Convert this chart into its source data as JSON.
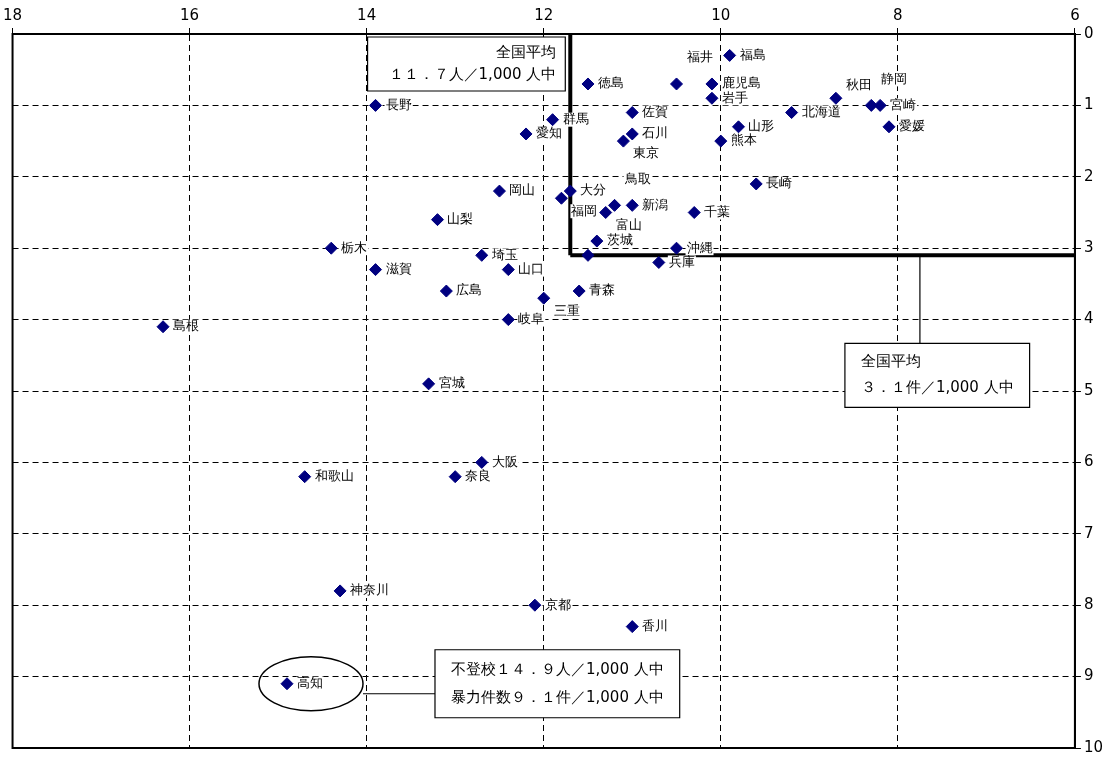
{
  "chart_data": {
    "type": "scatter",
    "marker": "diamond",
    "legend": false,
    "grid": true,
    "line_style": "dashed",
    "xlim": [
      18,
      6
    ],
    "xticks": [
      18,
      16,
      14,
      12,
      10,
      8,
      6
    ],
    "ylim": [
      10,
      0
    ],
    "yticks": [
      0,
      1,
      2,
      3,
      4,
      5,
      6,
      7,
      8,
      9,
      10
    ],
    "series": [
      {
        "color": "#000080",
        "x": [
          9.9,
          11.5,
          10.5,
          10.1,
          10.1,
          13.9,
          11.9,
          11.0,
          12.2,
          11.0,
          11.1,
          9.8,
          10.0,
          9.2,
          8.7,
          8.3,
          8.2,
          8.1,
          9.6,
          12.5,
          11.8,
          11.7,
          11.3,
          11.2,
          11.0,
          10.3,
          11.4,
          10.5,
          10.7,
          11.5,
          13.2,
          14.4,
          12.7,
          12.4,
          13.9,
          13.1,
          12.0,
          11.6,
          12.4,
          16.3,
          13.3,
          12.7,
          13.0,
          14.7,
          14.3,
          12.1,
          11.0,
          14.9
        ],
        "values": [
          0.3,
          0.7,
          0.7,
          0.7,
          0.9,
          1.0,
          1.2,
          1.1,
          1.4,
          1.4,
          1.5,
          1.3,
          1.5,
          1.1,
          0.9,
          1.0,
          1.0,
          1.3,
          2.1,
          2.2,
          2.3,
          2.2,
          2.5,
          2.4,
          2.4,
          2.5,
          2.9,
          3.0,
          3.2,
          3.1,
          2.6,
          3.0,
          3.1,
          3.3,
          3.3,
          3.6,
          3.7,
          3.6,
          4.0,
          4.1,
          4.9,
          6.0,
          6.2,
          6.2,
          7.8,
          8.0,
          8.3,
          9.1
        ]
      }
    ],
    "ref_lines": [
      {
        "axis": "x",
        "value": 11.7,
        "label": "全国平均"
      },
      {
        "axis": "y",
        "value": 3.1,
        "label": "全国平均"
      }
    ],
    "annotations": [
      {
        "text": "福島",
        "x": 9.9,
        "y": 0.3
      },
      {
        "text": "徳島",
        "x": 11.5,
        "y": 0.7
      },
      {
        "text": "福井",
        "x": 10.5,
        "y": 0.7
      },
      {
        "text": "鹿児島",
        "x": 10.1,
        "y": 0.7
      },
      {
        "text": "岩手",
        "x": 10.1,
        "y": 0.9
      },
      {
        "text": "長野",
        "x": 13.9,
        "y": 1.0
      },
      {
        "text": "群馬",
        "x": 11.9,
        "y": 1.2
      },
      {
        "text": "佐賀",
        "x": 11.0,
        "y": 1.1
      },
      {
        "text": "愛知",
        "x": 12.2,
        "y": 1.4
      },
      {
        "text": "石川",
        "x": 11.0,
        "y": 1.4
      },
      {
        "text": "東京",
        "x": 11.1,
        "y": 1.5
      },
      {
        "text": "山形",
        "x": 9.8,
        "y": 1.3
      },
      {
        "text": "熊本",
        "x": 10.0,
        "y": 1.5
      },
      {
        "text": "北海道",
        "x": 9.2,
        "y": 1.1
      },
      {
        "text": "秋田",
        "x": 8.7,
        "y": 0.9
      },
      {
        "text": "静岡",
        "x": 8.3,
        "y": 1.0
      },
      {
        "text": "宮崎",
        "x": 8.2,
        "y": 1.0
      },
      {
        "text": "愛媛",
        "x": 8.1,
        "y": 1.3
      },
      {
        "text": "長崎",
        "x": 9.6,
        "y": 2.1
      },
      {
        "text": "岡山",
        "x": 12.5,
        "y": 2.2
      },
      {
        "text": "福岡",
        "x": 11.8,
        "y": 2.3
      },
      {
        "text": "大分",
        "x": 11.7,
        "y": 2.2
      },
      {
        "text": "富山",
        "x": 11.3,
        "y": 2.5
      },
      {
        "text": "鳥取",
        "x": 11.2,
        "y": 2.4
      },
      {
        "text": "新潟",
        "x": 11.0,
        "y": 2.4
      },
      {
        "text": "千葉",
        "x": 10.3,
        "y": 2.5
      },
      {
        "text": "茨城",
        "x": 11.4,
        "y": 2.9
      },
      {
        "text": "沖縄",
        "x": 10.5,
        "y": 3.0
      },
      {
        "text": "兵庫",
        "x": 10.7,
        "y": 3.2
      },
      {
        "text": "山梨",
        "x": 13.2,
        "y": 2.6
      },
      {
        "text": "栃木",
        "x": 14.4,
        "y": 3.0
      },
      {
        "text": "埼玉",
        "x": 12.7,
        "y": 3.1
      },
      {
        "text": "山口",
        "x": 12.4,
        "y": 3.3
      },
      {
        "text": "滋賀",
        "x": 13.9,
        "y": 3.3
      },
      {
        "text": "広島",
        "x": 13.1,
        "y": 3.6
      },
      {
        "text": "三重",
        "x": 12.0,
        "y": 3.7
      },
      {
        "text": "青森",
        "x": 11.6,
        "y": 3.6
      },
      {
        "text": "岐阜",
        "x": 12.4,
        "y": 4.0
      },
      {
        "text": "島根",
        "x": 16.3,
        "y": 4.1
      },
      {
        "text": "宮城",
        "x": 13.3,
        "y": 4.9
      },
      {
        "text": "大阪",
        "x": 12.7,
        "y": 6.0
      },
      {
        "text": "奈良",
        "x": 13.0,
        "y": 6.2
      },
      {
        "text": "和歌山",
        "x": 14.7,
        "y": 6.2
      },
      {
        "text": "神奈川",
        "x": 14.3,
        "y": 7.8
      },
      {
        "text": "京都",
        "x": 12.1,
        "y": 8.0
      },
      {
        "text": "香川",
        "x": 11.0,
        "y": 8.3
      },
      {
        "text": "高知",
        "x": 14.9,
        "y": 9.1
      },
      "１１．７人／1,000 人中",
      "３．１件／1,000 人中",
      "不登校１４．９人／1,000 人中",
      "暴力件数９．１件／1,000 人中"
    ]
  }
}
